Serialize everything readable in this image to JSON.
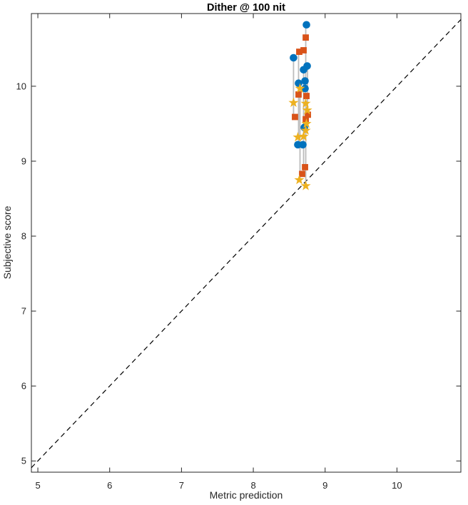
{
  "title": "Dither @ 100 nit",
  "axes": {
    "xlabel": "Metric prediction",
    "ylabel": "Subjective score"
  },
  "colors": {
    "circle_series": "#0072BD",
    "square_series": "#D95319",
    "star_series": "#EDB120",
    "axis": "#262626",
    "identity_line": "#000000",
    "connector_line": "#bcbcbc",
    "background": "#ffffff"
  },
  "chart_data": {
    "type": "scatter",
    "title": "Dither @ 100 nit",
    "xlabel": "Metric prediction",
    "ylabel": "Subjective score",
    "xlim": [
      4.91,
      10.89
    ],
    "ylim": [
      4.85,
      10.97
    ],
    "xticks": [
      5,
      6,
      7,
      8,
      9,
      10
    ],
    "yticks": [
      5,
      6,
      7,
      8,
      9,
      10
    ],
    "grid": false,
    "legend": false,
    "box": true,
    "tick_direction": "in-mirrored",
    "identity_line": {
      "style": "dashed",
      "y_equals_x": true,
      "from": 4.91,
      "to": 10.89
    },
    "connector_lines": [
      {
        "x": 8.56,
        "y1": 9.59,
        "y2": 10.38
      },
      {
        "x": 8.63,
        "y1": 9.22,
        "y2": 10.46
      },
      {
        "x": 8.65,
        "y1": 8.75,
        "y2": 9.97
      },
      {
        "x": 8.7,
        "y1": 8.83,
        "y2": 10.22
      },
      {
        "x": 8.73,
        "y1": 8.67,
        "y2": 10.82
      },
      {
        "x": 8.755,
        "y1": 9.62,
        "y2": 10.27
      }
    ],
    "series": [
      {
        "name": "blue-circles",
        "marker": "circle",
        "color": "#0072BD",
        "points": [
          [
            8.74,
            10.82
          ],
          [
            8.56,
            10.38
          ],
          [
            8.75,
            10.27
          ],
          [
            8.7,
            10.22
          ],
          [
            8.72,
            10.07
          ],
          [
            8.63,
            10.04
          ],
          [
            8.72,
            9.97
          ],
          [
            8.71,
            9.45
          ],
          [
            8.62,
            9.22
          ],
          [
            8.69,
            9.22
          ]
        ]
      },
      {
        "name": "orange-squares",
        "marker": "square",
        "color": "#D95319",
        "points": [
          [
            8.73,
            10.65
          ],
          [
            8.7,
            10.48
          ],
          [
            8.64,
            10.46
          ],
          [
            8.63,
            9.89
          ],
          [
            8.74,
            9.87
          ],
          [
            8.58,
            9.59
          ],
          [
            8.76,
            9.62
          ],
          [
            8.73,
            9.56
          ],
          [
            8.72,
            8.92
          ],
          [
            8.68,
            8.83
          ]
        ]
      },
      {
        "name": "yellow-stars",
        "marker": "pentagram",
        "color": "#EDB120",
        "points": [
          [
            8.65,
            9.97
          ],
          [
            8.56,
            9.78
          ],
          [
            8.73,
            9.77
          ],
          [
            8.75,
            9.68
          ],
          [
            8.74,
            9.5
          ],
          [
            8.73,
            9.41
          ],
          [
            8.62,
            9.32
          ],
          [
            8.7,
            9.33
          ],
          [
            8.64,
            8.75
          ],
          [
            8.73,
            8.67
          ]
        ]
      }
    ]
  }
}
